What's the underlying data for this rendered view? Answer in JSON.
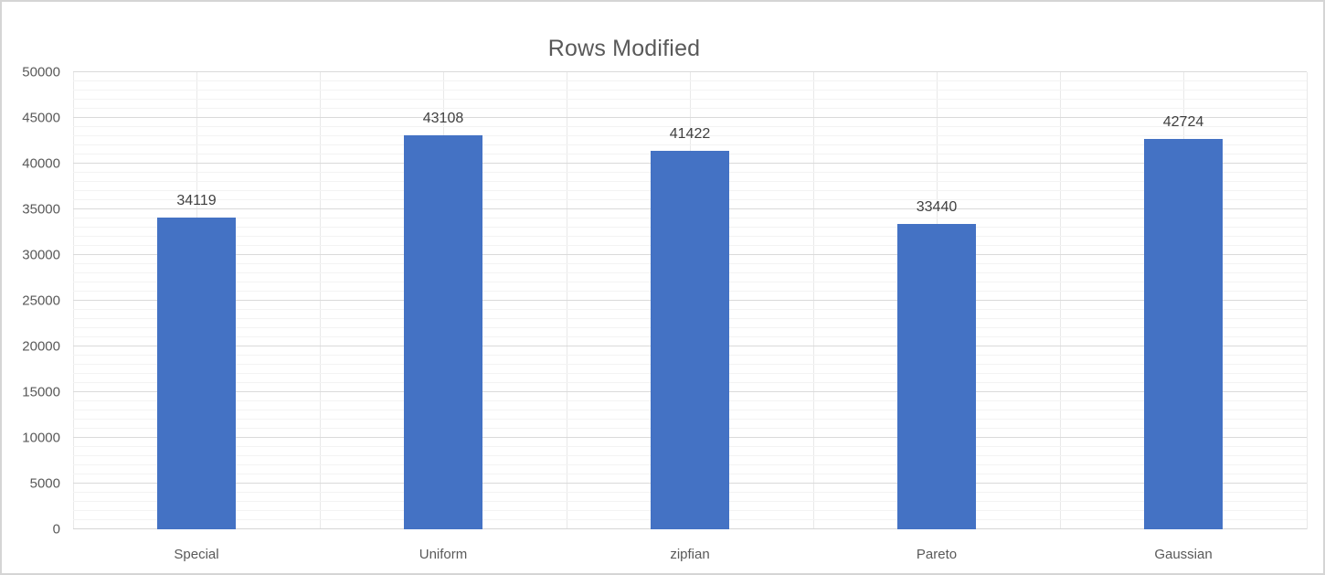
{
  "chart_data": {
    "type": "bar",
    "title": "Rows Modified",
    "categories": [
      "Special",
      "Uniform",
      "zipfian",
      "Pareto",
      "Gaussian"
    ],
    "values": [
      34119,
      43108,
      41422,
      33440,
      42724
    ],
    "data_labels": [
      "34119",
      "43108",
      "41422",
      "33440",
      "42724"
    ],
    "xlabel": "",
    "ylabel": "",
    "ylim": [
      0,
      50000
    ],
    "yticks": [
      0,
      5000,
      10000,
      15000,
      20000,
      25000,
      30000,
      35000,
      40000,
      45000,
      50000
    ],
    "ytick_interval_major": 5000,
    "ytick_interval_minor": 1000,
    "grid": true,
    "legend_position": "none",
    "colors": {
      "bar": "#4472c4",
      "title_text": "#595959",
      "axis_text": "#595959",
      "data_label_text": "#404040",
      "gridline_major": "#dadada",
      "gridline_minor": "#f3f3f3",
      "gridline_vertical": "#e9e9e9"
    }
  }
}
